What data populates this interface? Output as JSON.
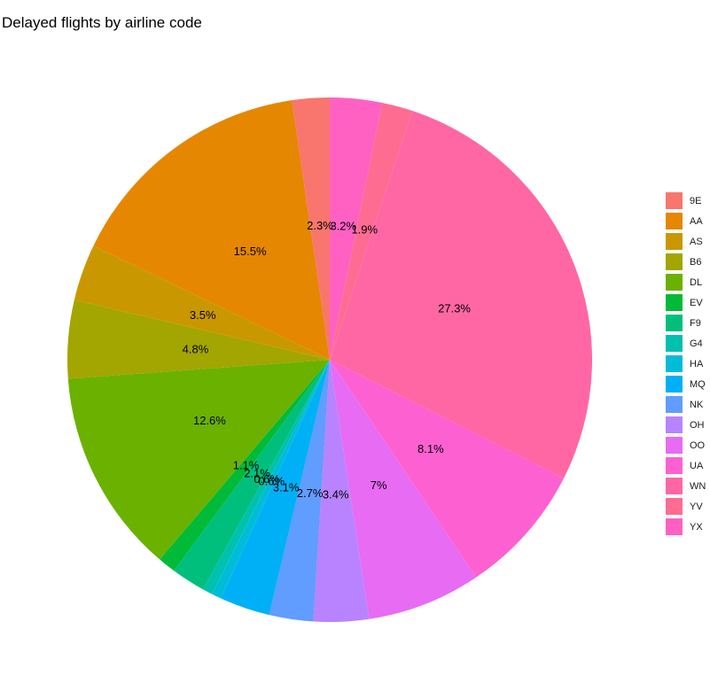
{
  "chart_data": {
    "type": "pie",
    "title": "Delayed flights by airline code",
    "legend_position": "right",
    "start": "top",
    "direction": "clockwise",
    "slices": [
      {
        "category": "9E",
        "value": 2.3,
        "label": "2.3%",
        "color": "#F8766D"
      },
      {
        "category": "AA",
        "value": 15.5,
        "label": "15.5%",
        "color": "#E58700"
      },
      {
        "category": "AS",
        "value": 3.5,
        "label": "3.5%",
        "color": "#C99800"
      },
      {
        "category": "B6",
        "value": 4.8,
        "label": "4.8%",
        "color": "#A3A500"
      },
      {
        "category": "DL",
        "value": 12.6,
        "label": "12.6%",
        "color": "#6BB100"
      },
      {
        "category": "EV",
        "value": 1.1,
        "label": "1.1%",
        "color": "#00BA38"
      },
      {
        "category": "F9",
        "value": 2.1,
        "label": "2.1%",
        "color": "#00BF7D"
      },
      {
        "category": "G4",
        "value": 0.6,
        "label": "0.6%",
        "color": "#00C0AF"
      },
      {
        "category": "HA",
        "value": 0.6,
        "label": "0.6%",
        "color": "#00BCD8"
      },
      {
        "category": "MQ",
        "value": 3.1,
        "label": "3.1%",
        "color": "#00B0F6"
      },
      {
        "category": "NK",
        "value": 2.7,
        "label": "2.7%",
        "color": "#619CFF"
      },
      {
        "category": "OH",
        "value": 3.4,
        "label": "3.4%",
        "color": "#B983FF"
      },
      {
        "category": "OO",
        "value": 7,
        "label": "7%",
        "color": "#E76BF3"
      },
      {
        "category": "UA",
        "value": 8.1,
        "label": "8.1%",
        "color": "#FD61D1"
      },
      {
        "category": "WN",
        "value": 27.3,
        "label": "27.3%",
        "color": "#FF67A4"
      },
      {
        "category": "YV",
        "value": 1.9,
        "label": "1.9%",
        "color": "#FF6C91"
      },
      {
        "category": "YX",
        "value": 3.2,
        "label": "3.2%",
        "color": "#FF61C3"
      }
    ]
  }
}
